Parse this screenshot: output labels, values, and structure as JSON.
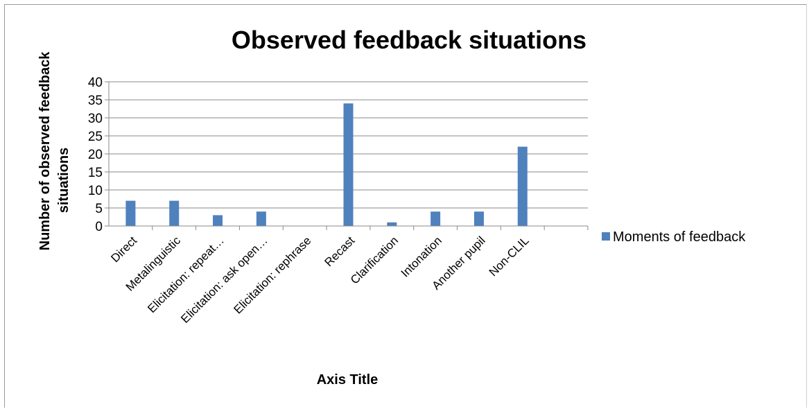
{
  "chart_data": {
    "type": "bar",
    "title": "Observed feedback situations",
    "xlabel": "Axis Title",
    "ylabel_lines": [
      "Number of observed  feedback",
      "situations"
    ],
    "categories": [
      "Direct",
      "Metalinguistic",
      "Elicitation: repeat…",
      "Elicitation: ask open…",
      "Elicitation: rephrase",
      "Recast",
      "Clarification",
      "Intonation",
      "Another pupil",
      "Non-CLIL",
      ""
    ],
    "series": [
      {
        "name": "Moments of feedback",
        "color": "#4f81bd",
        "values": [
          7,
          7,
          3,
          4,
          0,
          34,
          1,
          4,
          4,
          22,
          0
        ]
      }
    ],
    "ylim": [
      0,
      40
    ],
    "yticks": [
      0,
      5,
      10,
      15,
      20,
      25,
      30,
      35,
      40
    ],
    "ytick_labels": [
      "0",
      "5",
      "10",
      "15",
      "20",
      "25",
      "30",
      "35",
      "40"
    ],
    "grid": true,
    "legend_position": "right",
    "gridline_color": "#898989",
    "axis_color": "#898989"
  }
}
